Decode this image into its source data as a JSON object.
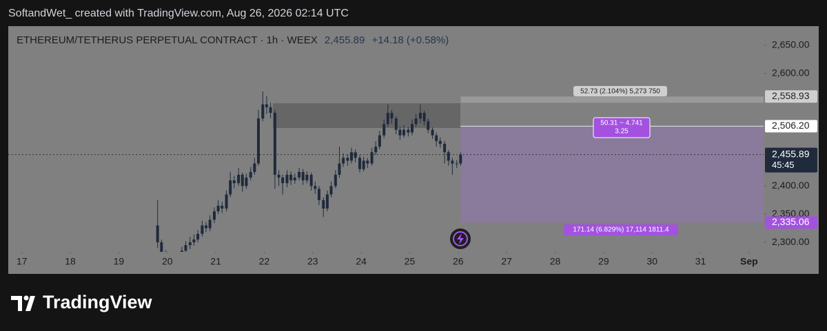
{
  "header": {
    "text": "SoftandWet_ created with TradingView.com, Aug 26, 2026 02:14 UTC"
  },
  "chart_data": {
    "type": "candlestick",
    "title": "ETHEREUM/TETHERUS PERPETUAL CONTRACT · 1h · WEEX",
    "change_text": "+14.18 (+0.58%)",
    "countdown": "45:45",
    "color": "#1f2a3c",
    "x": [
      19.8,
      19.88,
      19.97,
      20.05,
      20.13,
      20.22,
      20.3,
      20.38,
      20.47,
      20.55,
      20.63,
      20.72,
      20.8,
      20.88,
      20.97,
      21.05,
      21.13,
      21.22,
      21.3,
      21.38,
      21.47,
      21.55,
      21.63,
      21.72,
      21.8,
      21.88,
      21.97,
      22.05,
      22.13,
      22.22,
      22.3,
      22.38,
      22.47,
      22.55,
      22.63,
      22.72,
      22.8,
      22.88,
      22.97,
      23.05,
      23.13,
      23.22,
      23.3,
      23.38,
      23.47,
      23.55,
      23.63,
      23.72,
      23.8,
      23.88,
      23.97,
      24.05,
      24.13,
      24.22,
      24.3,
      24.38,
      24.47,
      24.55,
      24.63,
      24.72,
      24.8,
      24.88,
      24.97,
      25.05,
      25.13,
      25.22,
      25.3,
      25.38,
      25.47,
      25.55,
      25.63,
      25.72,
      25.8,
      25.88,
      25.97,
      26.05
    ],
    "open": [
      2330,
      2300,
      2280,
      2270,
      2265,
      2270,
      2275,
      2285,
      2295,
      2300,
      2305,
      2315,
      2330,
      2325,
      2340,
      2355,
      2365,
      2360,
      2385,
      2410,
      2405,
      2420,
      2400,
      2415,
      2425,
      2440,
      2520,
      2545,
      2540,
      2530,
      2420,
      2415,
      2405,
      2420,
      2410,
      2415,
      2425,
      2410,
      2420,
      2400,
      2395,
      2375,
      2360,
      2385,
      2400,
      2420,
      2440,
      2450,
      2445,
      2460,
      2450,
      2430,
      2445,
      2440,
      2460,
      2470,
      2490,
      2510,
      2530,
      2520,
      2500,
      2490,
      2500,
      2495,
      2510,
      2520,
      2530,
      2515,
      2500,
      2490,
      2480,
      2475,
      2460,
      2445,
      2440,
      2440
    ],
    "high": [
      2375,
      2305,
      2286,
      2276,
      2278,
      2282,
      2292,
      2302,
      2310,
      2314,
      2322,
      2338,
      2336,
      2348,
      2362,
      2375,
      2372,
      2392,
      2425,
      2418,
      2432,
      2424,
      2422,
      2434,
      2450,
      2535,
      2568,
      2560,
      2548,
      2535,
      2428,
      2420,
      2428,
      2426,
      2422,
      2432,
      2430,
      2426,
      2424,
      2408,
      2400,
      2380,
      2392,
      2408,
      2428,
      2470,
      2458,
      2456,
      2468,
      2465,
      2455,
      2452,
      2450,
      2468,
      2480,
      2498,
      2518,
      2545,
      2535,
      2524,
      2506,
      2508,
      2505,
      2518,
      2528,
      2545,
      2534,
      2520,
      2504,
      2495,
      2486,
      2480,
      2464,
      2450,
      2446,
      2460
    ],
    "low": [
      2290,
      2272,
      2262,
      2258,
      2260,
      2264,
      2270,
      2280,
      2288,
      2294,
      2300,
      2310,
      2318,
      2320,
      2334,
      2350,
      2352,
      2355,
      2380,
      2396,
      2400,
      2390,
      2395,
      2410,
      2420,
      2436,
      2515,
      2528,
      2520,
      2395,
      2400,
      2385,
      2398,
      2402,
      2404,
      2410,
      2402,
      2405,
      2392,
      2386,
      2366,
      2345,
      2355,
      2380,
      2396,
      2415,
      2434,
      2436,
      2440,
      2442,
      2424,
      2426,
      2432,
      2436,
      2455,
      2465,
      2485,
      2505,
      2510,
      2492,
      2482,
      2486,
      2488,
      2490,
      2505,
      2512,
      2508,
      2494,
      2484,
      2470,
      2468,
      2440,
      2436,
      2420,
      2432,
      2436
    ],
    "close": [
      2300,
      2280,
      2270,
      2265,
      2270,
      2275,
      2285,
      2295,
      2300,
      2305,
      2315,
      2330,
      2325,
      2340,
      2355,
      2365,
      2360,
      2385,
      2410,
      2405,
      2420,
      2400,
      2415,
      2425,
      2440,
      2520,
      2545,
      2540,
      2530,
      2420,
      2415,
      2405,
      2420,
      2410,
      2415,
      2425,
      2410,
      2420,
      2400,
      2395,
      2375,
      2360,
      2385,
      2400,
      2420,
      2440,
      2450,
      2445,
      2460,
      2450,
      2430,
      2445,
      2440,
      2460,
      2470,
      2490,
      2510,
      2530,
      2520,
      2500,
      2490,
      2500,
      2495,
      2510,
      2520,
      2530,
      2515,
      2500,
      2490,
      2480,
      2475,
      2460,
      2445,
      2440,
      2440,
      2455.89
    ],
    "xlim": [
      16.72,
      32.3
    ],
    "xticks": [
      17,
      18,
      19,
      20,
      21,
      22,
      23,
      24,
      25,
      26,
      27,
      28,
      29,
      30,
      31,
      {
        "value": 32,
        "label": "Sep"
      }
    ],
    "ylim": [
      2283,
      2684
    ],
    "yticks": [
      {
        "value": 2300,
        "label": "2,300.00"
      },
      {
        "value": 2350,
        "label": "2,350.00"
      },
      {
        "value": 2400,
        "label": "2,400.00"
      },
      {
        "value": 2600,
        "label": "2,600.00"
      },
      {
        "value": 2650,
        "label": "2,650.00"
      }
    ],
    "last_price": {
      "value": 2455.89,
      "label": "2,455.89"
    },
    "price_levels": [
      {
        "value": 2558.93,
        "label": "2,558.93"
      },
      {
        "value": 2506.2,
        "label": "2,506.20"
      },
      {
        "value": 2335.06,
        "label": "2,335.06"
      }
    ],
    "annotations": [
      "52.73 (2.104%) 5,273 750",
      "50.31 ~ 4.741",
      "3.25",
      "171.14 (6.829%) 17,114 1811.4"
    ]
  },
  "footer": {
    "brand": "TradingView"
  }
}
